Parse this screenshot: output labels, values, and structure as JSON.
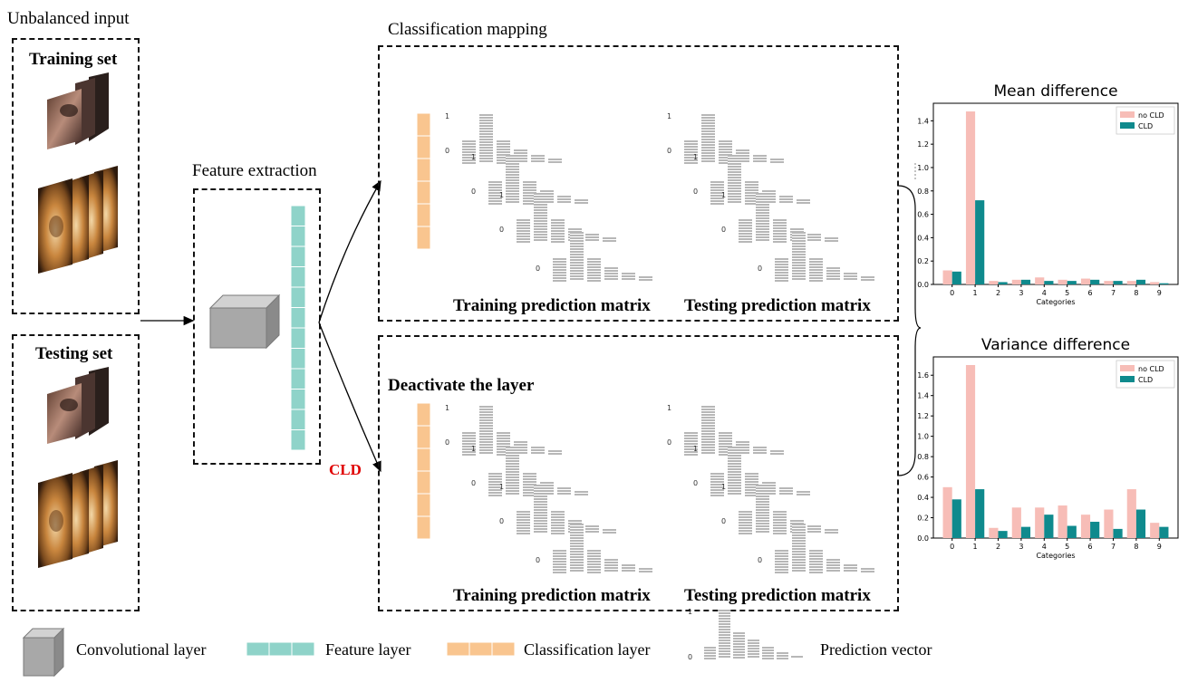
{
  "left": {
    "title": "Unbalanced input",
    "training_label": "Training set",
    "testing_label": "Testing set"
  },
  "feature": {
    "title": "Feature extraction"
  },
  "mapping": {
    "title": "Classification mapping",
    "cld_label": "CLD",
    "top": {
      "caption_train": "Training prediction matrix",
      "caption_test": "Testing prediction matrix"
    },
    "bottom": {
      "title": "Deactivate the layer",
      "caption_train": "Training prediction matrix",
      "caption_test": "Testing prediction matrix"
    },
    "axis_one": "1",
    "axis_zero": "0"
  },
  "legend": {
    "conv": "Convolutional layer",
    "feature": "Feature layer",
    "classification": "Classification layer",
    "prediction": "Prediction vector"
  },
  "colors": {
    "teal": "#8fd3c9",
    "orange": "#f9c58f",
    "pink": "#f7bdb7",
    "darkteal": "#0f8a8d",
    "gray": "#a5a5a5",
    "cube": "#9b9b9b"
  },
  "chart_data": [
    {
      "type": "bar",
      "title": "Mean difference",
      "xlabel": "Categories",
      "ylabel": "",
      "categories": [
        "0",
        "1",
        "2",
        "3",
        "4",
        "5",
        "6",
        "7",
        "8",
        "9"
      ],
      "series": [
        {
          "name": "no CLD",
          "values": [
            0.12,
            1.48,
            0.03,
            0.04,
            0.06,
            0.04,
            0.05,
            0.03,
            0.03,
            0.02
          ]
        },
        {
          "name": "CLD",
          "values": [
            0.11,
            0.72,
            0.02,
            0.04,
            0.03,
            0.03,
            0.04,
            0.03,
            0.04,
            0.01
          ]
        }
      ],
      "yticks": [
        "0.0",
        "0.2",
        "0.4",
        "0.6",
        "0.8",
        "1.0",
        "1.2",
        "1.4"
      ],
      "ylim": [
        0,
        1.55
      ],
      "legend": "top-right"
    },
    {
      "type": "bar",
      "title": "Variance difference",
      "xlabel": "Categories",
      "ylabel": "",
      "categories": [
        "0",
        "1",
        "2",
        "3",
        "4",
        "5",
        "6",
        "7",
        "8",
        "9"
      ],
      "series": [
        {
          "name": "no CLD",
          "values": [
            0.5,
            1.7,
            0.1,
            0.3,
            0.3,
            0.32,
            0.23,
            0.28,
            0.48,
            0.15
          ]
        },
        {
          "name": "CLD",
          "values": [
            0.38,
            0.48,
            0.07,
            0.11,
            0.23,
            0.12,
            0.16,
            0.09,
            0.28,
            0.11
          ]
        }
      ],
      "yticks": [
        "0.0",
        "0.2",
        "0.4",
        "0.6",
        "0.8",
        "1.0",
        "1.2",
        "1.4",
        "1.6"
      ],
      "ylim": [
        0,
        1.78
      ],
      "legend": "top-right"
    }
  ]
}
